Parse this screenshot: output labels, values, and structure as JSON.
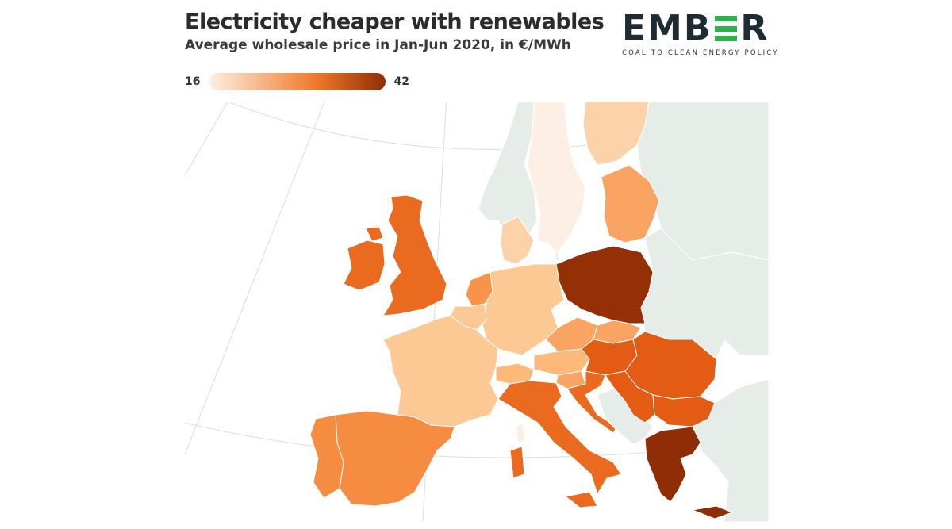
{
  "header": {
    "title": "Electricity cheaper with renewables",
    "subtitle": "Average wholesale price in Jan-Jun 2020, in €/MWh"
  },
  "legend": {
    "min_label": "16",
    "max_label": "42",
    "min_value": 16,
    "max_value": 42,
    "color_low": "#fdefe3",
    "color_mid": "#f07a2b",
    "color_high": "#8f2d06"
  },
  "logo": {
    "letters_left": "EMB",
    "letters_right": "R",
    "tagline": "COAL TO CLEAN ENERGY POLICY",
    "brand_color": "#1f2b33",
    "accent_color": "#2fb24a"
  },
  "map": {
    "no_data_color": "#e6ede9",
    "graticule_color": "#dcdcdc",
    "regions": [
      {
        "name": "Norway",
        "color": "#e6ede9"
      },
      {
        "name": "Sweden",
        "color": "#fdefe3"
      },
      {
        "name": "Finland",
        "color": "#fcd3a8"
      },
      {
        "name": "Estonia / Latvia / Lithuania",
        "color": "#f9a463"
      },
      {
        "name": "Denmark",
        "color": "#fcd3a8"
      },
      {
        "name": "United Kingdom",
        "color": "#ea6b20"
      },
      {
        "name": "Ireland",
        "color": "#ea6b20"
      },
      {
        "name": "Netherlands",
        "color": "#f7944a"
      },
      {
        "name": "Belgium",
        "color": "#fcc893"
      },
      {
        "name": "Germany",
        "color": "#fcc893"
      },
      {
        "name": "France",
        "color": "#fcc893"
      },
      {
        "name": "Poland",
        "color": "#952f06"
      },
      {
        "name": "Czechia",
        "color": "#f9a463"
      },
      {
        "name": "Slovakia",
        "color": "#f9a463"
      },
      {
        "name": "Austria",
        "color": "#fcb97a"
      },
      {
        "name": "Switzerland",
        "color": "#fcb97a"
      },
      {
        "name": "Slovenia",
        "color": "#f9a463"
      },
      {
        "name": "Hungary",
        "color": "#e45b14"
      },
      {
        "name": "Romania",
        "color": "#e45b14"
      },
      {
        "name": "Croatia",
        "color": "#ea6b20"
      },
      {
        "name": "Serbia",
        "color": "#e45b14"
      },
      {
        "name": "Bulgaria",
        "color": "#e45b14"
      },
      {
        "name": "Italy",
        "color": "#ea6b20"
      },
      {
        "name": "Spain",
        "color": "#f68c3f"
      },
      {
        "name": "Portugal",
        "color": "#f68c3f"
      },
      {
        "name": "Greece",
        "color": "#8f2d06"
      },
      {
        "name": "Belarus / Ukraine",
        "color": "#e6ede9"
      },
      {
        "name": "Balkans",
        "color": "#e6ede9"
      },
      {
        "name": "Turkey",
        "color": "#e6ede9"
      }
    ]
  }
}
